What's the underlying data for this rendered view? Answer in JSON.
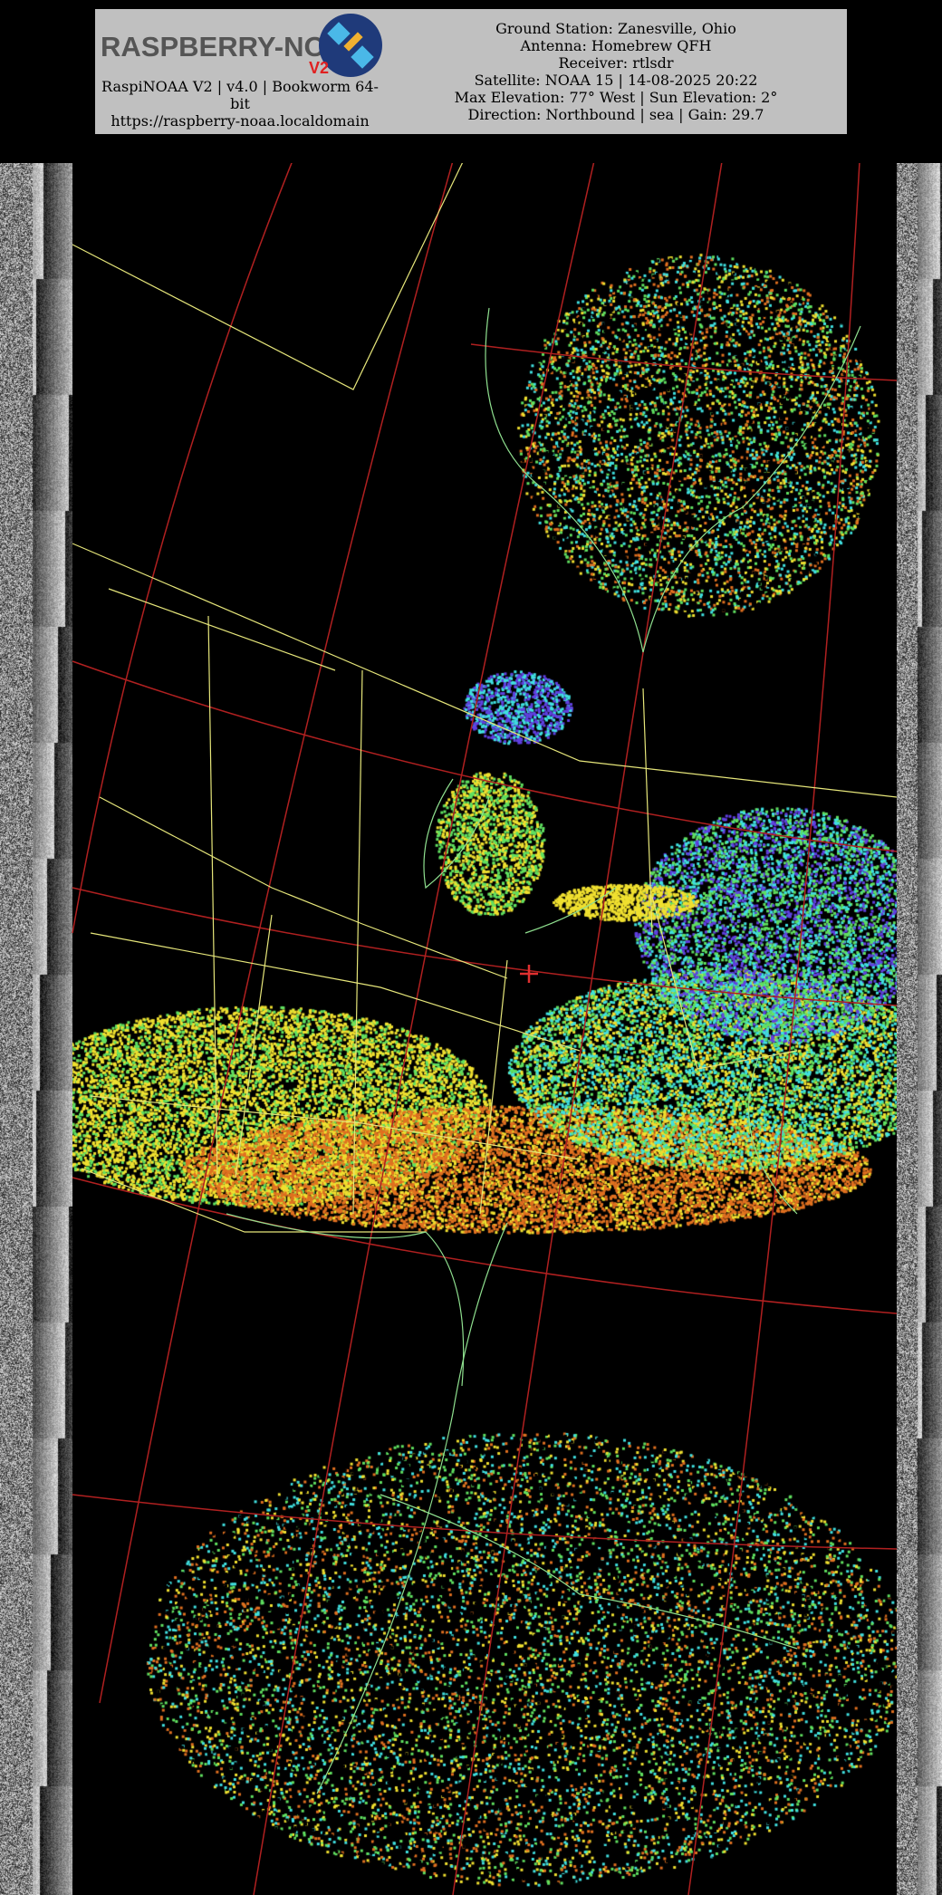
{
  "header": {
    "logo_text": "RASPBERRY-NOAA",
    "logo_badge": "V2",
    "version_line": "RaspiNOAA V2 | v4.0 | Bookworm 64-bit",
    "url": "https://raspberry-noaa.localdomain",
    "details": [
      "Ground Station: Zanesville, Ohio",
      "Antenna: Homebrew QFH",
      "Receiver: rtlsdr",
      "Satellite: NOAA 15 | 14-08-2025 20:22",
      "Max Elevation: 77° West | Sun Elevation: 2°",
      "Direction: Northbound | sea | Gain: 29.7"
    ]
  },
  "imagery": {
    "colors": {
      "borders": "#e6e67a",
      "coastline": "#8fe08f",
      "graticule": "#b02020",
      "ground_station_marker": "#e03030",
      "cloud_warm": "#f0e030",
      "cloud_hot": "#e07020",
      "cloud_cool": "#40e0e0",
      "cloud_cold": "#6040e0",
      "cloud_mid": "#60e060"
    }
  }
}
